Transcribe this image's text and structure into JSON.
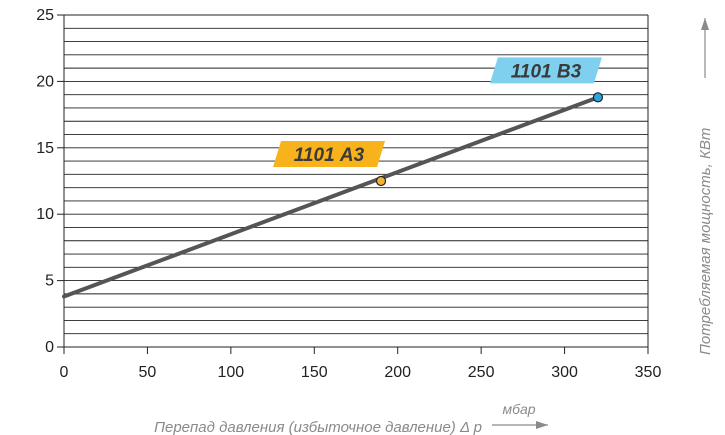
{
  "chart_data": {
    "type": "line",
    "title": "",
    "xlabel": "Перепад давления (избыточное давление) Δ p",
    "xunit": "мбар",
    "ylabel": "Потребляемая мощность, КВт",
    "xlim": [
      0,
      350
    ],
    "ylim": [
      0,
      25
    ],
    "x_ticks": [
      0,
      50,
      100,
      150,
      200,
      250,
      300,
      350
    ],
    "y_ticks": [
      0,
      5,
      10,
      15,
      20,
      25
    ],
    "y_minor_step": 1,
    "grid": true,
    "series": [
      {
        "x": [
          0,
          320
        ],
        "y": [
          3.8,
          18.8
        ],
        "color": "#555555"
      }
    ],
    "annotations": [
      {
        "text": "1101 А3",
        "x": 190,
        "y": 12.5,
        "color": "#f7b21c",
        "marker_color": "#f2b234"
      },
      {
        "text": "1101 В3",
        "x": 320,
        "y": 18.8,
        "color": "#7fd0ee",
        "marker_color": "#2aa6dd"
      }
    ]
  }
}
